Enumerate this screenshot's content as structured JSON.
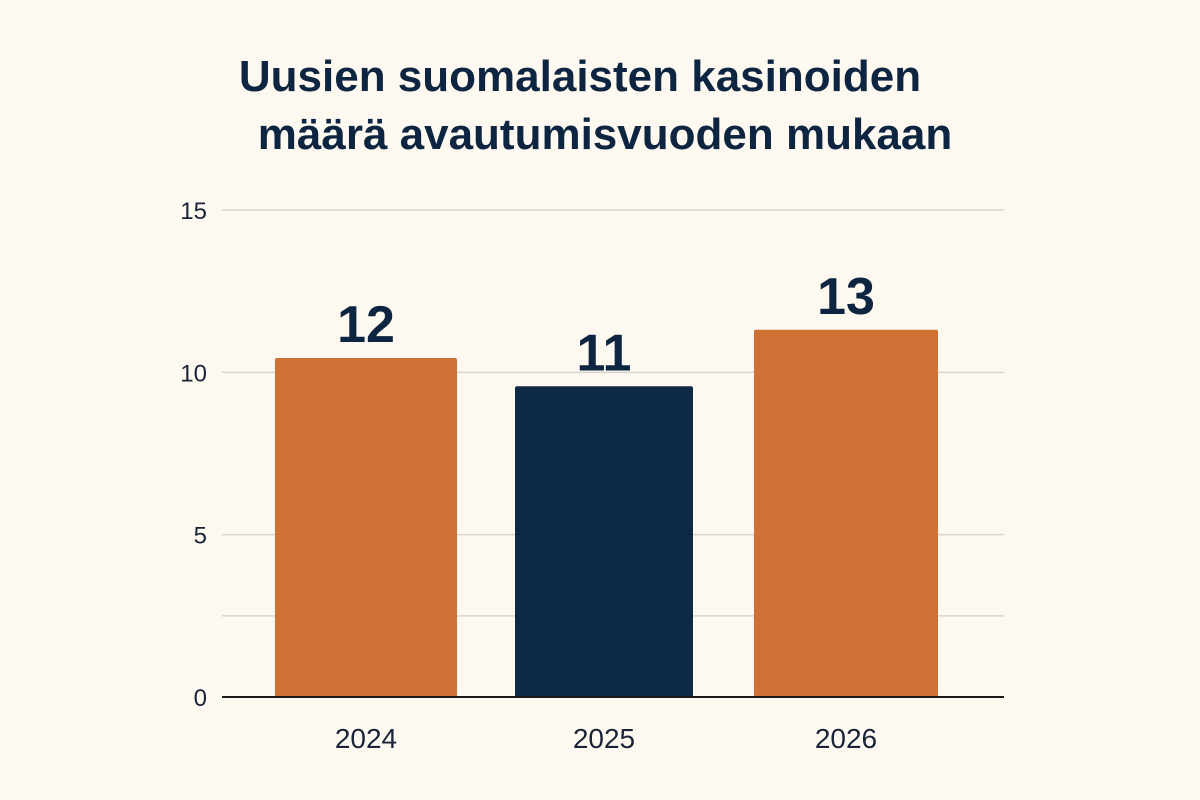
{
  "title_lines": [
    "Uusien suomalaisten kasinoiden",
    "määrä avautumisvuoden mukaan"
  ],
  "chart_data": {
    "type": "bar",
    "title": "Uusien suomalaisten kasinoiden määrä avautumisvuoden mukaan",
    "categories": [
      "2024",
      "2025",
      "2026"
    ],
    "values": [
      12,
      11,
      13
    ],
    "data_labels": [
      "12",
      "11",
      "13"
    ],
    "y_ticks": [
      0,
      5,
      10,
      15
    ],
    "gridlines_at": [
      5,
      10,
      15
    ],
    "ylim": [
      0,
      15
    ],
    "grid": true,
    "legend": "none",
    "bar_colors": [
      "#cf7035",
      "#0d2943",
      "#cf7035"
    ]
  }
}
